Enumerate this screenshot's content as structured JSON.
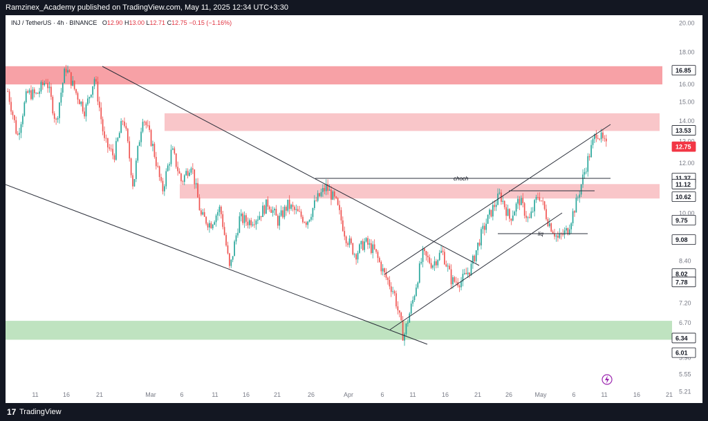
{
  "header": {
    "publisher_line": "Ramzinex_Academy published on TradingView.com, May 11, 2025 12:34 UTC+3:30"
  },
  "legend": {
    "symbol": "INJ / TetherUS · 4h · BINANCE",
    "open_label": "O",
    "open": "12.90",
    "high_label": "H",
    "high": "13.00",
    "low_label": "L",
    "low": "12.71",
    "close_label": "C",
    "close": "12.75",
    "change": "−0.15 (−1.16%)"
  },
  "footer": {
    "logo_glyph": "17",
    "brand": "TradingView"
  },
  "colors": {
    "up": "#26a69a",
    "down": "#ef5350",
    "zone_red_strong": "#f7a1a6",
    "zone_red_light": "#f9c6c9",
    "zone_green": "#bfe3c0",
    "last_price": "#f23645",
    "axis_text": "#787b86"
  },
  "icons": {
    "flash": "lightning-icon"
  },
  "chart_data": {
    "type": "candlestick",
    "timeframe": "4h",
    "y_scale": "log",
    "ylim": [
      5.0,
      20.6
    ],
    "x_tick_labels": [
      "11",
      "16",
      "21",
      "Mar",
      "6",
      "11",
      "16",
      "21",
      "26",
      "Apr",
      "6",
      "11",
      "16",
      "21",
      "26",
      "May",
      "6",
      "11",
      "16",
      "21"
    ],
    "y_tick_labels": [
      "20.00",
      "18.00",
      "16.00",
      "15.00",
      "14.00",
      "13.00",
      "12.00",
      "11.00",
      "10.00",
      "8.40",
      "7.20",
      "6.70",
      "5.90",
      "5.55",
      "5.21"
    ],
    "y_tick_values": [
      20.0,
      18.0,
      16.0,
      15.0,
      14.0,
      13.0,
      12.0,
      11.0,
      10.0,
      8.4,
      7.2,
      6.7,
      5.9,
      5.55,
      5.21
    ],
    "price_markers": [
      {
        "value": "16.85",
        "level": 16.85,
        "style": "white"
      },
      {
        "value": "13.53",
        "level": 13.53,
        "style": "white"
      },
      {
        "value": "12.75",
        "level": 12.75,
        "style": "red"
      },
      {
        "value": "11.37",
        "level": 11.37,
        "style": "white"
      },
      {
        "value": "11.12",
        "level": 11.12,
        "style": "white"
      },
      {
        "value": "10.62",
        "level": 10.62,
        "style": "white"
      },
      {
        "value": "9.75",
        "level": 9.75,
        "style": "white"
      },
      {
        "value": "9.08",
        "level": 9.08,
        "style": "white"
      },
      {
        "value": "8.02",
        "level": 8.02,
        "style": "white"
      },
      {
        "value": "7.78",
        "level": 7.78,
        "style": "white"
      },
      {
        "value": "6.34",
        "level": 6.34,
        "style": "white"
      },
      {
        "value": "6.01",
        "level": 6.01,
        "style": "white"
      }
    ],
    "zones": [
      {
        "from": 16.0,
        "to": 17.1,
        "color": "strong"
      },
      {
        "from": 13.5,
        "to": 14.4,
        "color": "light"
      },
      {
        "from": 10.55,
        "to": 11.12,
        "color": "light"
      },
      {
        "from": 6.3,
        "to": 6.75,
        "color": "green"
      }
    ],
    "annotations": [
      {
        "text": "choch",
        "type": "horizontal",
        "level": 11.12
      },
      {
        "text": "liq",
        "type": "horizontal",
        "level": 9.08
      }
    ],
    "path_points": [
      15.6,
      13.2,
      15.5,
      15.4,
      16.3,
      13.9,
      17.05,
      15.6,
      14.5,
      16.4,
      13.0,
      12.3,
      14.2,
      11.0,
      14.3,
      12.8,
      10.8,
      12.6,
      11.2,
      12.0,
      9.9,
      9.6,
      10.2,
      8.1,
      9.8,
      9.7,
      9.9,
      10.4,
      9.7,
      10.3,
      10.0,
      9.7,
      10.5,
      11.0,
      10.4,
      9.2,
      8.6,
      9.0,
      8.7,
      8.0,
      7.5,
      6.34,
      7.3,
      8.6,
      8.3,
      8.7,
      7.8,
      7.8,
      8.2,
      9.2,
      10.0,
      10.7,
      9.8,
      10.5,
      9.7,
      10.75,
      9.7,
      9.1,
      9.4,
      10.5,
      12.0,
      13.5,
      12.75
    ]
  }
}
